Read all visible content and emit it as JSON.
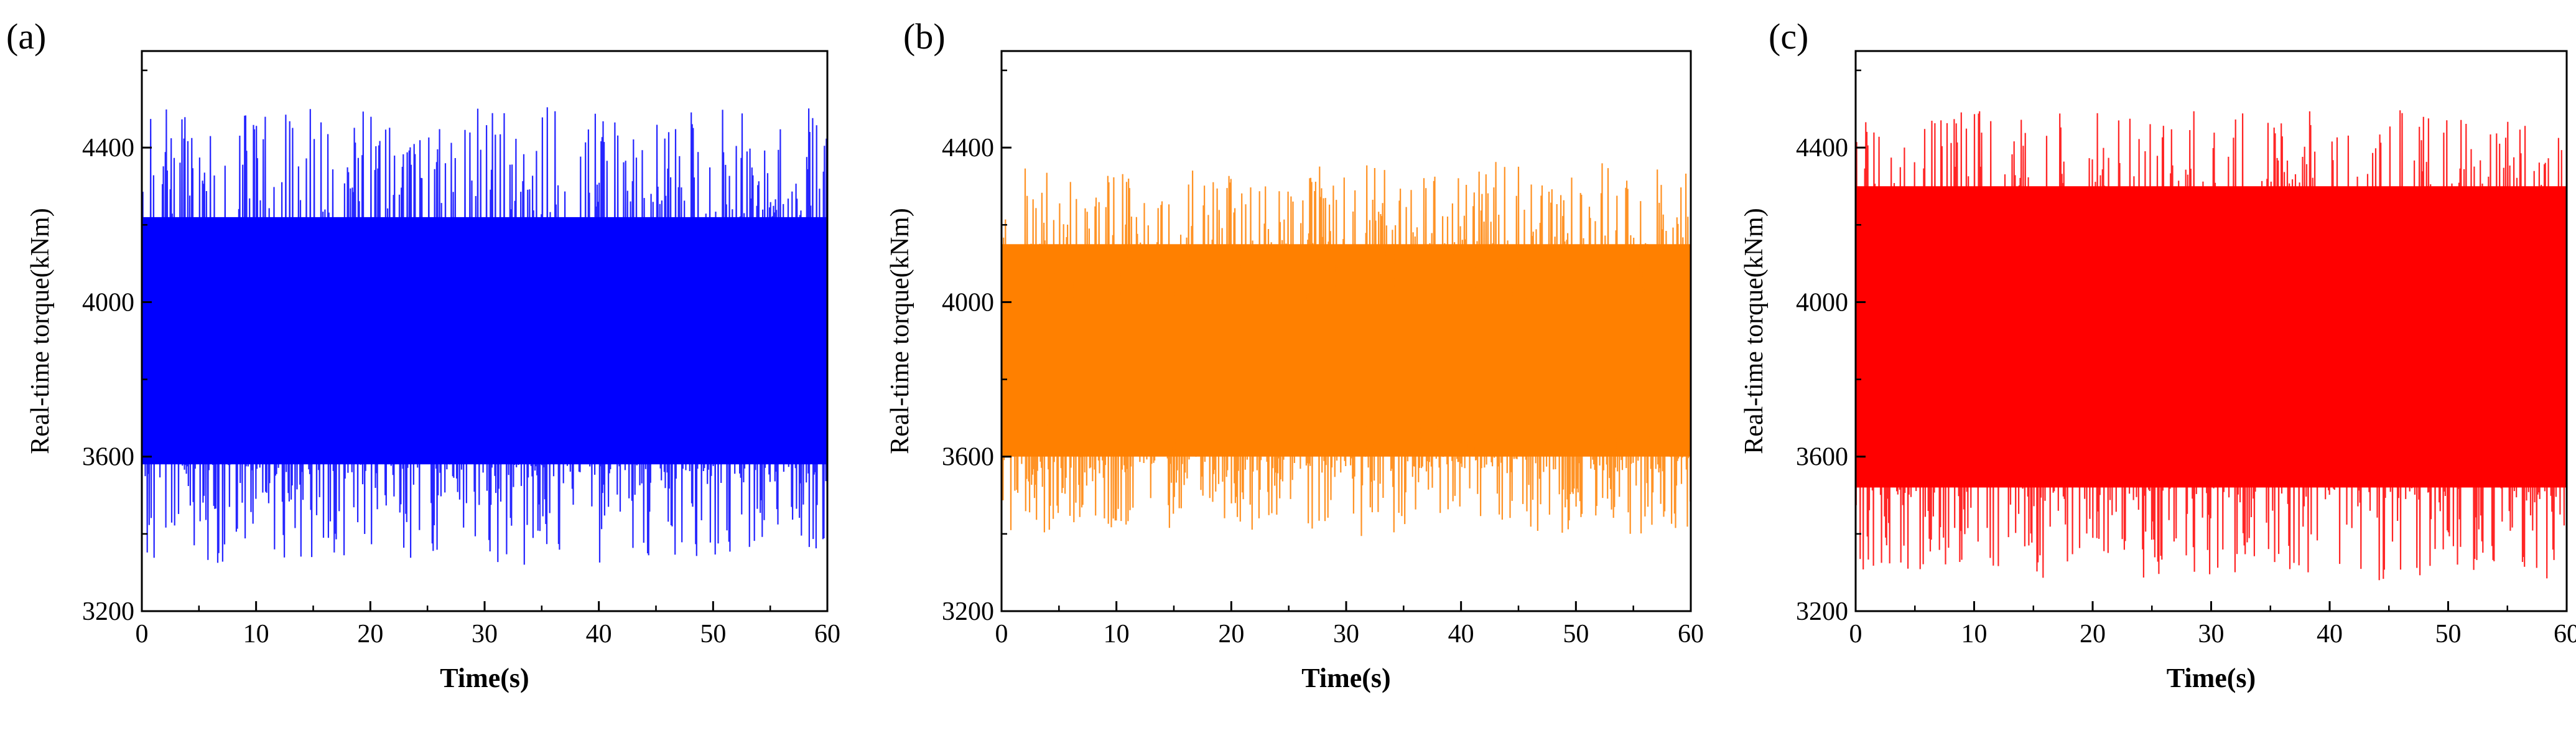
{
  "figure": {
    "panels": [
      "(a)",
      "(b)",
      "(c)"
    ]
  },
  "chart_data": [
    {
      "type": "line",
      "panel": "(a)",
      "xlabel": "Time(s)",
      "ylabel": "Real-time torque(kNm)",
      "xlim": [
        0,
        60
      ],
      "ylim": [
        3200,
        4650
      ],
      "xticks": [
        0,
        10,
        20,
        30,
        40,
        50,
        60
      ],
      "yticks": [
        3200,
        3600,
        4000,
        4400
      ],
      "grid": false,
      "series": [
        {
          "color": "#0000ff",
          "mean": 3880,
          "dense_band": [
            3580,
            4220
          ],
          "peak_range": [
            3330,
            4490
          ],
          "cycles": 90,
          "seed": 11
        }
      ]
    },
    {
      "type": "line",
      "panel": "(b)",
      "xlabel": "Time(s)",
      "ylabel": "Real-time torque(kNm)",
      "xlim": [
        0,
        60
      ],
      "ylim": [
        3200,
        4650
      ],
      "xticks": [
        0,
        10,
        20,
        30,
        40,
        50,
        60
      ],
      "yticks": [
        3200,
        3600,
        4000,
        4400
      ],
      "grid": false,
      "series": [
        {
          "color": "#ff8000",
          "mean": 3850,
          "dense_band": [
            3600,
            4150
          ],
          "peak_range": [
            3400,
            4350
          ],
          "cycles": 130,
          "seed": 23
        }
      ]
    },
    {
      "type": "line",
      "panel": "(c)",
      "xlabel": "Time(s)",
      "ylabel": "Real-time torque(kNm)",
      "xlim": [
        0,
        60
      ],
      "ylim": [
        3200,
        4650
      ],
      "xticks": [
        0,
        10,
        20,
        30,
        40,
        50,
        60
      ],
      "yticks": [
        3200,
        3600,
        4000,
        4400
      ],
      "grid": false,
      "series": [
        {
          "color": "#ff0000",
          "mean": 3890,
          "dense_band": [
            3520,
            4300
          ],
          "peak_range": [
            3290,
            4490
          ],
          "cycles": 180,
          "seed": 37
        }
      ]
    }
  ]
}
